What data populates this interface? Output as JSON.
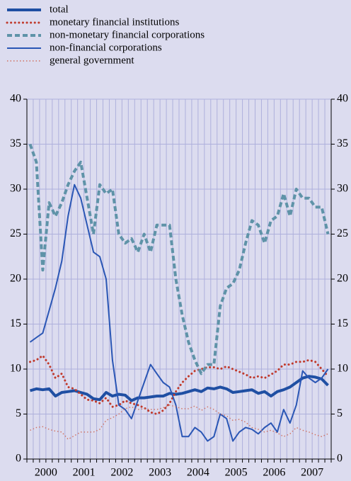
{
  "chart_data": {
    "type": "line",
    "categories": [
      null,
      null,
      null,
      "2000",
      null,
      null,
      null,
      null,
      null,
      "2001",
      null,
      null,
      null,
      null,
      null,
      "2002",
      null,
      null,
      null,
      null,
      null,
      "2003",
      null,
      null,
      null,
      null,
      null,
      "2004",
      null,
      null,
      null,
      null,
      null,
      "2005",
      null,
      null,
      null,
      null,
      null,
      "2006",
      null,
      null,
      null,
      null,
      null,
      "2007",
      null,
      null
    ],
    "series": [
      {
        "name": "total",
        "color": "#1f4fa3",
        "line_style": "solid-thick",
        "values": [
          7.6,
          7.8,
          7.7,
          7.8,
          7.0,
          7.4,
          7.5,
          7.6,
          7.4,
          7.2,
          6.7,
          6.6,
          7.4,
          7.0,
          7.2,
          7.1,
          6.5,
          6.8,
          6.8,
          6.9,
          7.0,
          7.0,
          7.3,
          7.2,
          7.3,
          7.5,
          7.7,
          7.5,
          7.9,
          7.8,
          8.0,
          7.8,
          7.4,
          7.5,
          7.6,
          7.7,
          7.3,
          7.5,
          7.0,
          7.5,
          7.7,
          8.0,
          8.5,
          9.0,
          9.2,
          9.1,
          8.9,
          8.2
        ]
      },
      {
        "name": "monetary financial institutions",
        "color": "#c0392b",
        "line_style": "dotted",
        "values": [
          10.8,
          11,
          11.5,
          10.5,
          9,
          9.5,
          8,
          7.8,
          7.2,
          6.6,
          6.5,
          6.2,
          6.8,
          5.8,
          6,
          6.5,
          6.2,
          6,
          5.7,
          5.2,
          5,
          5.4,
          6.2,
          7.5,
          8.5,
          9.2,
          9.8,
          10,
          10.2,
          10.2,
          10,
          10.3,
          10,
          9.7,
          9.4,
          9,
          9.2,
          9,
          9.4,
          9.8,
          10.5,
          10.5,
          10.8,
          10.8,
          11,
          10.8,
          10,
          9.2
        ]
      },
      {
        "name": "non-monetary financial corporations",
        "color": "#5f93a8",
        "line_style": "dashed-thick",
        "values": [
          35,
          33,
          21,
          28.5,
          27,
          28.5,
          30.5,
          32,
          33,
          29,
          25,
          30.5,
          29.5,
          30,
          25,
          24,
          24.5,
          23,
          25,
          23,
          26,
          26,
          26,
          20,
          16,
          13,
          11,
          9.5,
          10.5,
          10.5,
          17,
          19,
          19.5,
          21,
          24,
          26.5,
          26,
          24,
          26.5,
          27,
          29.5,
          27,
          30,
          29,
          29,
          28,
          28,
          25
        ]
      },
      {
        "name": "non-financial corporations",
        "color": "#2a56b5",
        "line_style": "solid",
        "values": [
          13,
          13.5,
          14,
          16.5,
          19,
          22,
          27,
          30.5,
          29,
          26,
          23,
          22.5,
          20,
          11,
          6,
          5.5,
          4.5,
          6.5,
          8.5,
          10.5,
          9.5,
          8.5,
          8,
          6,
          2.5,
          2.5,
          3.5,
          3,
          2,
          2.5,
          5,
          4.5,
          2,
          3,
          3.5,
          3.3,
          2.8,
          3.5,
          4,
          3,
          5.5,
          4,
          6,
          9.8,
          9,
          8.5,
          9,
          10
        ]
      },
      {
        "name": "general government",
        "color": "#d07060",
        "line_style": "dotted-thin",
        "values": [
          3.2,
          3.5,
          3.6,
          3.3,
          3.1,
          3.0,
          2.2,
          2.6,
          3.0,
          3.0,
          3.0,
          3.3,
          4.3,
          4.6,
          5.0,
          5.6,
          5.8,
          5.5,
          5.6,
          5.5,
          5.5,
          5.7,
          6.0,
          5.8,
          5.6,
          5.6,
          5.9,
          5.4,
          5.8,
          5.5,
          5.0,
          4.8,
          4.3,
          4.4,
          4.1,
          3.5,
          3.3,
          3.0,
          3.2,
          2.9,
          2.5,
          2.8,
          3.5,
          3.2,
          3.0,
          2.7,
          2.5,
          2.8
        ]
      }
    ],
    "ylim": [
      0,
      40
    ],
    "yticks": [
      0,
      5,
      10,
      15,
      20,
      25,
      30,
      35,
      40
    ],
    "grid": true,
    "legend": "top-left",
    "mirror_y_axis": true
  }
}
